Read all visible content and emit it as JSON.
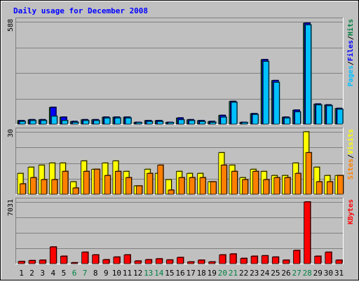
{
  "chart_data": {
    "type": "bar",
    "title": "Daily usage for December 2008",
    "categories": [
      "1",
      "2",
      "3",
      "4",
      "5",
      "6",
      "7",
      "8",
      "9",
      "10",
      "11",
      "12",
      "13",
      "14",
      "15",
      "16",
      "17",
      "18",
      "19",
      "20",
      "21",
      "22",
      "23",
      "24",
      "25",
      "26",
      "27",
      "28",
      "29",
      "30",
      "31"
    ],
    "weekend_days": [
      "6",
      "7",
      "13",
      "14",
      "20",
      "21",
      "27",
      "28"
    ],
    "panels": [
      {
        "id": "pages-files-hits",
        "ymax_label": "588",
        "ymax": 588,
        "legend": [
          {
            "text": "Pages",
            "color": "#00c0ff"
          },
          {
            "text": "/",
            "color": "#000000"
          },
          {
            "text": "Files",
            "color": "#0000ff"
          },
          {
            "text": "/",
            "color": "#000000"
          },
          {
            "text": "Hits",
            "color": "#008040"
          }
        ],
        "series": [
          {
            "name": "Hits",
            "color": "#008040",
            "values": [
              20,
              25,
              25,
              96,
              40,
              15,
              25,
              25,
              40,
              40,
              40,
              10,
              20,
              20,
              10,
              35,
              25,
              20,
              15,
              50,
              130,
              10,
              60,
              370,
              250,
              40,
              80,
              580,
              115,
              110,
              90
            ]
          },
          {
            "name": "Files",
            "color": "#0000ff",
            "values": [
              20,
              25,
              25,
              96,
              40,
              15,
              25,
              25,
              40,
              40,
              40,
              10,
              20,
              20,
              10,
              35,
              25,
              20,
              15,
              50,
              130,
              10,
              60,
              370,
              250,
              40,
              80,
              580,
              115,
              110,
              90
            ]
          },
          {
            "name": "Pages",
            "color": "#00c0ff",
            "values": [
              15,
              20,
              20,
              45,
              20,
              10,
              20,
              20,
              35,
              35,
              35,
              8,
              15,
              15,
              8,
              25,
              20,
              15,
              10,
              40,
              125,
              8,
              55,
              360,
              240,
              35,
              70,
              570,
              110,
              105,
              85
            ]
          }
        ]
      },
      {
        "id": "sites-visits",
        "ymax_label": "30",
        "ymax": 30,
        "legend": [
          {
            "text": "Sites",
            "color": "#ff8000"
          },
          {
            "text": "/",
            "color": "#000000"
          },
          {
            "text": "Visits",
            "color": "#ffff00"
          }
        ],
        "series": [
          {
            "name": "Visits",
            "color": "#ffff00",
            "values": [
              10,
              13,
              14,
              15,
              15,
              6,
              16,
              12,
              15,
              16,
              11,
              4,
              12,
              10,
              7,
              11,
              10,
              10,
              6,
              20,
              14,
              8,
              12,
              11,
              9,
              9,
              15,
              30,
              13,
              9,
              9
            ]
          },
          {
            "name": "Sites",
            "color": "#ff8000",
            "values": [
              5,
              8,
              7,
              7,
              11,
              3,
              11,
              12,
              9,
              11,
              8,
              4,
              10,
              14,
              2,
              8,
              8,
              8,
              6,
              14,
              11,
              7,
              11,
              7,
              8,
              8,
              10,
              20,
              6,
              6,
              9
            ]
          }
        ]
      },
      {
        "id": "kbytes",
        "ymax_label": "7031",
        "ymax": 7031,
        "legend": [
          {
            "text": "KBytes",
            "color": "#ff0000"
          }
        ],
        "series": [
          {
            "name": "KBytes",
            "color": "#ff0000",
            "values": [
              250,
              350,
              400,
              1900,
              850,
              100,
              1300,
              1000,
              450,
              750,
              1000,
              300,
              450,
              550,
              420,
              700,
              200,
              400,
              200,
              1000,
              1100,
              600,
              850,
              900,
              750,
              400,
              1500,
              7031,
              850,
              1300,
              400
            ]
          }
        ]
      }
    ]
  }
}
